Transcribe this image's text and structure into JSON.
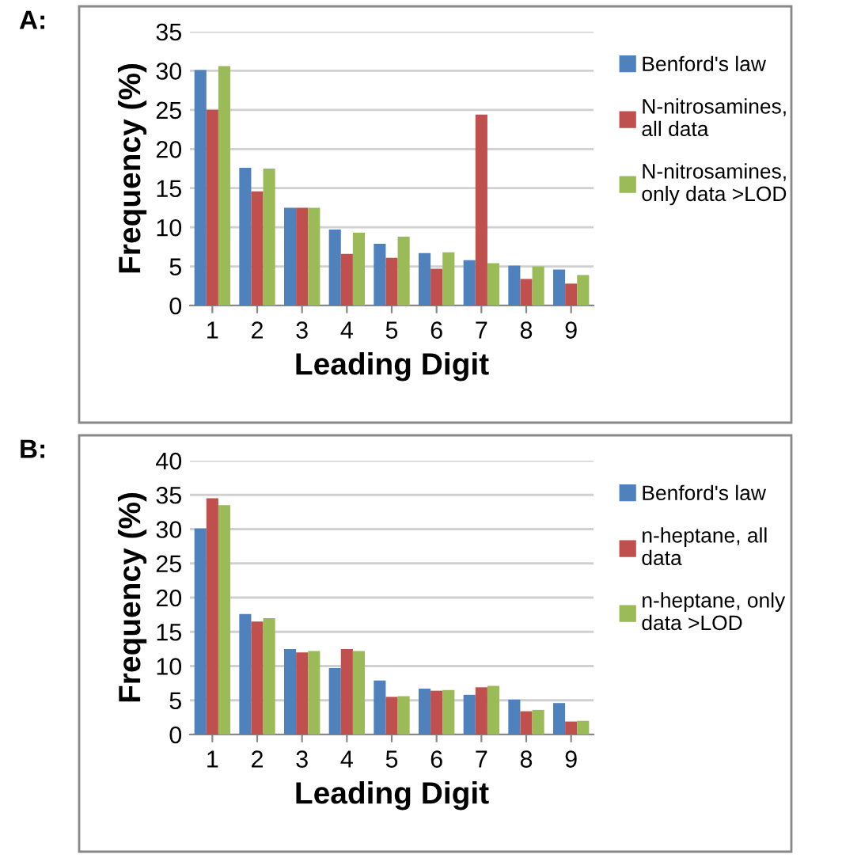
{
  "chart_data": [
    {
      "type": "bar",
      "title": "A:",
      "xlabel": "Leading Digit",
      "ylabel": "Frequency (%)",
      "categories": [
        "1",
        "2",
        "3",
        "4",
        "5",
        "6",
        "7",
        "8",
        "9"
      ],
      "series": [
        {
          "name": "Benford's law",
          "color": "#4f81bd",
          "values": [
            30.1,
            17.6,
            12.5,
            9.7,
            7.9,
            6.7,
            5.8,
            5.1,
            4.6
          ]
        },
        {
          "name": "N-nitrosamines, all data",
          "color": "#c0504d",
          "values": [
            25.0,
            14.6,
            12.5,
            6.6,
            6.1,
            4.7,
            24.4,
            3.4,
            2.8
          ]
        },
        {
          "name": "N-nitrosamines, only data >LOD",
          "color": "#9bbb59",
          "values": [
            30.6,
            17.5,
            12.5,
            9.3,
            8.8,
            6.8,
            5.4,
            5.0,
            3.9
          ]
        }
      ],
      "ylim": [
        0,
        35
      ],
      "yticks": [
        0,
        5,
        10,
        15,
        20,
        25,
        30,
        35
      ],
      "grid": "y",
      "legend": "right"
    },
    {
      "type": "bar",
      "title": "B:",
      "xlabel": "Leading Digit",
      "ylabel": "Frequency (%)",
      "categories": [
        "1",
        "2",
        "3",
        "4",
        "5",
        "6",
        "7",
        "8",
        "9"
      ],
      "series": [
        {
          "name": "Benford's law",
          "color": "#4f81bd",
          "values": [
            30.1,
            17.6,
            12.5,
            9.7,
            7.9,
            6.7,
            5.8,
            5.1,
            4.6
          ]
        },
        {
          "name": "n-heptane, all data",
          "color": "#c0504d",
          "values": [
            34.5,
            16.5,
            12.0,
            12.5,
            5.5,
            6.4,
            6.9,
            3.4,
            1.9
          ]
        },
        {
          "name": "n-heptane, only data >LOD",
          "color": "#9bbb59",
          "values": [
            33.5,
            17.0,
            12.2,
            12.2,
            5.6,
            6.5,
            7.1,
            3.6,
            2.0
          ]
        }
      ],
      "ylim": [
        0,
        40
      ],
      "yticks": [
        0,
        5,
        10,
        15,
        20,
        25,
        30,
        35,
        40
      ],
      "grid": "y",
      "legend": "right"
    }
  ]
}
